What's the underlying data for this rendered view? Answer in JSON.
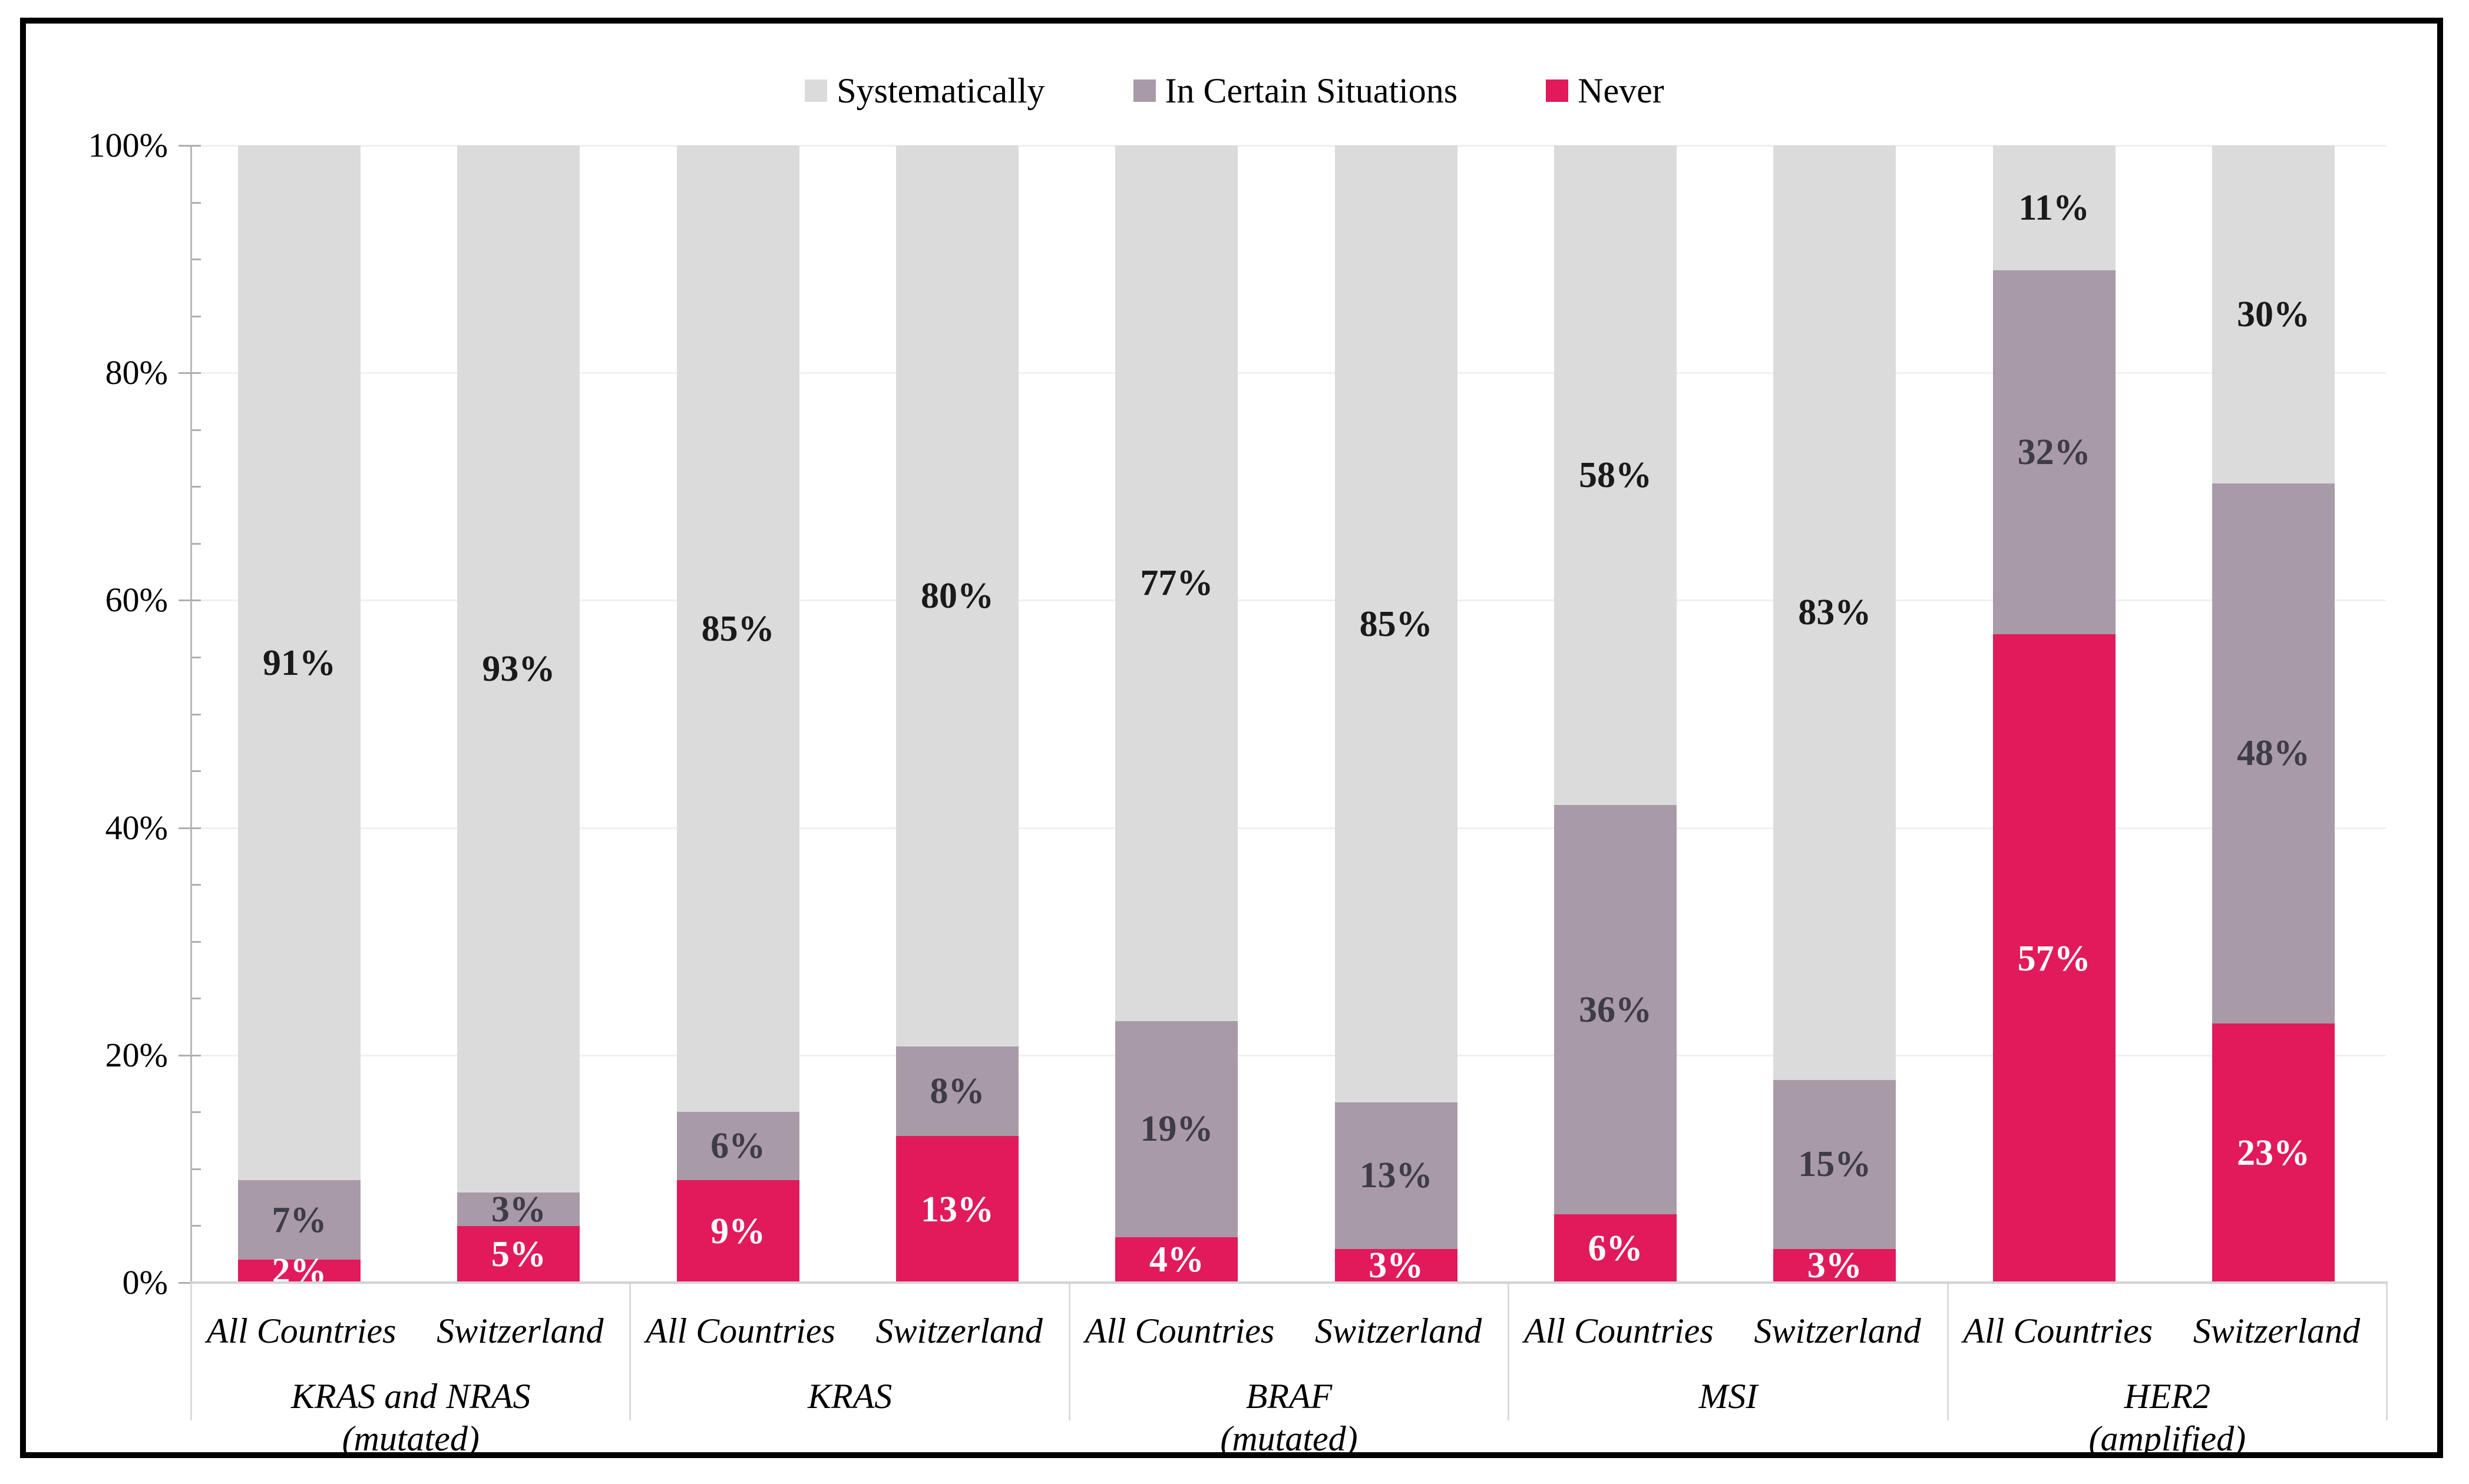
{
  "figure": {
    "background": "#ffffff",
    "border_color": "#000000"
  },
  "legend": {
    "position": "top-center",
    "items": [
      {
        "name": "systematically",
        "label": "Systematically",
        "color": "#DBDBDB"
      },
      {
        "name": "in-certain-situations",
        "label": "In Certain Situations",
        "color": "#A89AA6"
      },
      {
        "name": "never",
        "label": "Never",
        "color": "#E11A5B"
      }
    ]
  },
  "chart_data": {
    "type": "bar",
    "stacked": true,
    "orientation": "vertical",
    "title": "",
    "xlabel": "",
    "ylabel": "",
    "ylim": [
      0,
      100
    ],
    "grid": "horizontal-major",
    "value_suffix": "%",
    "y_major_ticks": [
      {
        "value": 0,
        "label": "0%"
      },
      {
        "value": 20,
        "label": "20%"
      },
      {
        "value": 40,
        "label": "40%"
      },
      {
        "value": 60,
        "label": "60%"
      },
      {
        "value": 80,
        "label": "80%"
      },
      {
        "value": 100,
        "label": "100%"
      }
    ],
    "y_minor_tick_step": 5,
    "series_order_bottom_to_top": [
      "never",
      "in-certain-situations",
      "systematically"
    ],
    "series_style": {
      "systematically": {
        "fill": "#DBDBDB",
        "label_color": "#1A1A1A"
      },
      "in-certain-situations": {
        "fill": "#A89AA6",
        "label_color": "#3E3C46"
      },
      "never": {
        "fill": "#E11A5B",
        "label_color": "#FFFFFF"
      }
    },
    "groups": [
      {
        "name": "KRAS and NRAS",
        "qualifier": "(mutated)",
        "bars": [
          {
            "category": "All Countries",
            "values": {
              "never": 2,
              "in-certain-situations": 7,
              "systematically": 91
            }
          },
          {
            "category": "Switzerland",
            "values": {
              "never": 5,
              "in-certain-situations": 3,
              "systematically": 93
            }
          }
        ]
      },
      {
        "name": "KRAS",
        "qualifier": "",
        "bars": [
          {
            "category": "All Countries",
            "values": {
              "never": 9,
              "in-certain-situations": 6,
              "systematically": 85
            }
          },
          {
            "category": "Switzerland",
            "values": {
              "never": 13,
              "in-certain-situations": 8,
              "systematically": 80
            }
          }
        ]
      },
      {
        "name": "BRAF",
        "qualifier": "(mutated)",
        "bars": [
          {
            "category": "All Countries",
            "values": {
              "never": 4,
              "in-certain-situations": 19,
              "systematically": 77
            }
          },
          {
            "category": "Switzerland",
            "values": {
              "never": 3,
              "in-certain-situations": 13,
              "systematically": 85
            }
          }
        ]
      },
      {
        "name": "MSI",
        "qualifier": "",
        "bars": [
          {
            "category": "All Countries",
            "values": {
              "never": 6,
              "in-certain-situations": 36,
              "systematically": 58
            }
          },
          {
            "category": "Switzerland",
            "values": {
              "never": 3,
              "in-certain-situations": 15,
              "systematically": 83
            }
          }
        ]
      },
      {
        "name": "HER2",
        "qualifier": "(amplified)",
        "bars": [
          {
            "category": "All Countries",
            "values": {
              "never": 57,
              "in-certain-situations": 32,
              "systematically": 11
            }
          },
          {
            "category": "Switzerland",
            "values": {
              "never": 23,
              "in-certain-situations": 48,
              "systematically": 30
            }
          }
        ]
      }
    ]
  }
}
